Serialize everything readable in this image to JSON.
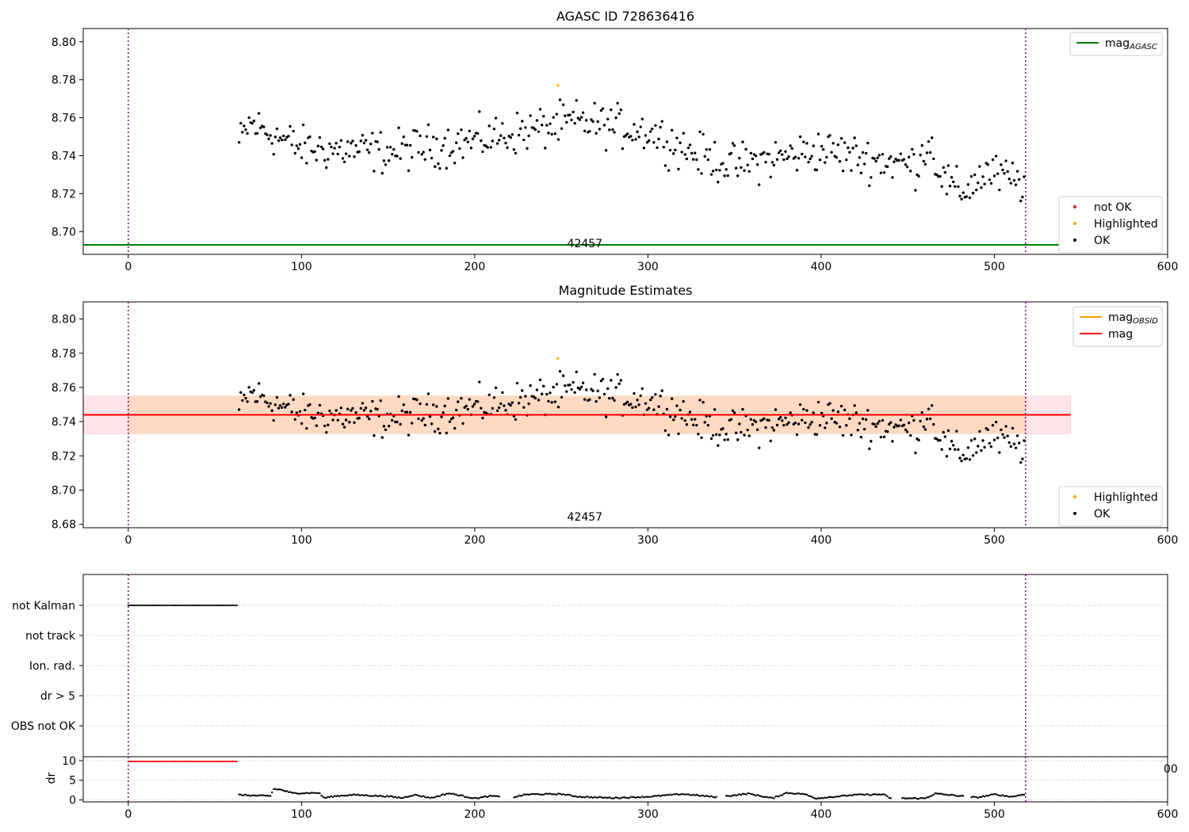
{
  "chart_data": [
    {
      "type": "scatter",
      "title": "AGASC ID 728636416",
      "xlim": [
        -26,
        600
      ],
      "ylim": [
        8.688,
        8.807
      ],
      "xticks": [
        0,
        100,
        200,
        300,
        400,
        500,
        600
      ],
      "yticks": [
        8.7,
        8.72,
        8.74,
        8.76,
        8.78,
        8.8
      ],
      "ytick_labels": [
        "8.70",
        "8.72",
        "8.74",
        "8.76",
        "8.78",
        "8.80"
      ],
      "vlines": [
        0,
        518
      ],
      "mag_agasc": 8.693,
      "obsid_label": {
        "text": "42457",
        "x": 259
      },
      "legend_upper": [
        {
          "label": "mag",
          "sub": "AGASC",
          "color": "#008000"
        }
      ],
      "legend_lower": [
        {
          "label": "not OK",
          "color": "#ff0000"
        },
        {
          "label": "Highlighted",
          "color": "#ffa500"
        },
        {
          "label": "OK",
          "color": "#000000"
        }
      ],
      "highlighted": [
        [
          248,
          8.777
        ]
      ]
    },
    {
      "type": "scatter",
      "title": "Magnitude Estimates",
      "xlim": [
        -26,
        600
      ],
      "ylim": [
        8.678,
        8.81
      ],
      "xticks": [
        0,
        100,
        200,
        300,
        400,
        500,
        600
      ],
      "yticks": [
        8.68,
        8.7,
        8.72,
        8.74,
        8.76,
        8.78,
        8.8
      ],
      "ytick_labels": [
        "8.68",
        "8.70",
        "8.72",
        "8.74",
        "8.76",
        "8.78",
        "8.80"
      ],
      "vlines": [
        0,
        518
      ],
      "mag": 8.744,
      "mag_band": [
        8.733,
        8.755
      ],
      "band_xrange": [
        -26,
        544
      ],
      "obsid_label": {
        "text": "42457",
        "x": 259
      },
      "legend_upper": [
        {
          "label": "mag",
          "sub": "OBSID",
          "color": "#ffa500"
        },
        {
          "label": "mag",
          "sub": "",
          "color": "#ff0000"
        }
      ],
      "legend_lower": [
        {
          "label": "Highlighted",
          "color": "#ffa500"
        },
        {
          "label": "OK",
          "color": "#000000"
        }
      ],
      "highlighted": [
        [
          248,
          8.777
        ]
      ]
    },
    {
      "type": "scatter",
      "title": "",
      "xlim": [
        -26,
        600
      ],
      "categories": [
        "not Kalman",
        "not track",
        "Ion. rad.",
        "dr > 5",
        "OBS not OK"
      ],
      "flags": [
        {
          "category": "not Kalman",
          "x_range": [
            0,
            63
          ]
        }
      ],
      "vlines": [
        0,
        518
      ],
      "edge_label": "00"
    },
    {
      "type": "line",
      "title": "",
      "xlim": [
        -26,
        600
      ],
      "ylim": [
        -0.5,
        11
      ],
      "ylabel": "dr",
      "xticks": [
        0,
        100,
        200,
        300,
        400,
        500,
        600
      ],
      "yticks": [
        0,
        5,
        10
      ],
      "flag_level": 9.8,
      "flag_x_range": [
        0,
        63
      ],
      "vlines": [
        0,
        518
      ],
      "dr_profile": [
        [
          64,
          1.3
        ],
        [
          72,
          1.1
        ],
        [
          82,
          1.0
        ],
        [
          84,
          2.8
        ],
        [
          88,
          2.6
        ],
        [
          95,
          1.7
        ],
        [
          110,
          1.8
        ],
        [
          113,
          0.5
        ],
        [
          120,
          1.0
        ],
        [
          130,
          1.3
        ],
        [
          150,
          0.9
        ],
        [
          158,
          0.5
        ],
        [
          165,
          1.3
        ],
        [
          175,
          0.5
        ],
        [
          185,
          1.7
        ],
        [
          200,
          0.4
        ],
        [
          210,
          1.0
        ],
        [
          220,
          0.5
        ],
        [
          230,
          1.4
        ],
        [
          250,
          1.5
        ],
        [
          260,
          0.8
        ],
        [
          280,
          0.5
        ],
        [
          300,
          0.8
        ],
        [
          320,
          1.5
        ],
        [
          340,
          0.7
        ],
        [
          358,
          1.6
        ],
        [
          372,
          0.4
        ],
        [
          380,
          1.8
        ],
        [
          390,
          1.5
        ],
        [
          397,
          0.4
        ],
        [
          420,
          1.3
        ],
        [
          436,
          1.4
        ],
        [
          440,
          0.4
        ],
        [
          460,
          0.4
        ],
        [
          466,
          1.6
        ],
        [
          490,
          0.6
        ],
        [
          500,
          1.4
        ],
        [
          510,
          0.8
        ],
        [
          518,
          1.5
        ]
      ],
      "dr_gaps": [
        [
          215,
          222
        ],
        [
          340,
          345
        ],
        [
          441,
          446
        ],
        [
          482,
          486
        ]
      ]
    }
  ],
  "colors": {
    "ok": "#000000",
    "not_ok": "#ff0000",
    "highlighted": "#ffa500",
    "mag_agasc": "#008000",
    "mag": "#ff0000",
    "mag_obsid": "#ffa500",
    "band_outer": "#ffe4e8",
    "band_inner": "#ffd9c2",
    "vline": "#800080"
  }
}
